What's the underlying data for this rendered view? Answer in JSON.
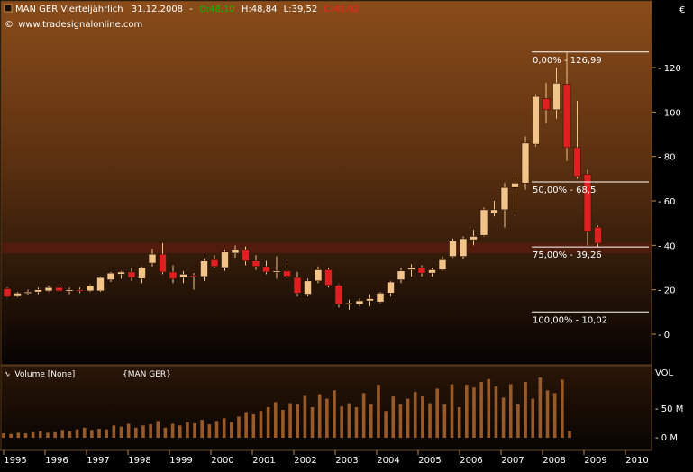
{
  "header": {
    "symbol": "MAN GER Vierteljährlich",
    "date": "31.12.2008",
    "sep": "-",
    "open": "O:48,10",
    "high": "H:48,84",
    "low": "L:39,52",
    "close": "C:40,92",
    "source": "www.tradesignalonline.com",
    "currency": "€"
  },
  "volume_panel": {
    "label": "Volume [None]",
    "symbol_label": "{MAN GER}",
    "axis_labels": [
      "VOL",
      "50 M",
      "0 M"
    ]
  },
  "colors": {
    "background_top": "#8a4c1a",
    "background_bottom": "#050302",
    "up_candle": "#f3c48a",
    "down_candle": "#e02020",
    "volume_bar": "#9a5a28",
    "fib_line": "#ffffff",
    "highlight_band": "#5a1c0e",
    "open_green": "#00c000",
    "close_red": "#ff2020"
  },
  "chart_data": [
    {
      "type": "candlestick",
      "title": "MAN GER Vierteljährlich",
      "ylabel": "€",
      "ylim": [
        -10,
        140
      ],
      "y_ticks": [
        0,
        20,
        40,
        60,
        80,
        100,
        120
      ],
      "x_ticks": [
        "1995",
        "1996",
        "1997",
        "1998",
        "1999",
        "2000",
        "2001",
        "2002",
        "2003",
        "2004",
        "2005",
        "2006",
        "2007",
        "2008",
        "2009",
        "2010"
      ],
      "candles": [
        {
          "q": "1995-Q1",
          "o": 20.5,
          "h": 21.0,
          "l": 16.5,
          "c": 16.9
        },
        {
          "q": "1995-Q2",
          "o": 17.0,
          "h": 19.0,
          "l": 16.5,
          "c": 18.5
        },
        {
          "q": "1995-Q3",
          "o": 18.5,
          "h": 20.0,
          "l": 17.5,
          "c": 19.0
        },
        {
          "q": "1995-Q4",
          "o": 19.0,
          "h": 21.0,
          "l": 18.0,
          "c": 20.0
        },
        {
          "q": "1996-Q1",
          "o": 19.5,
          "h": 22.0,
          "l": 19.0,
          "c": 21.0
        },
        {
          "q": "1996-Q2",
          "o": 21.0,
          "h": 22.0,
          "l": 19.0,
          "c": 19.5
        },
        {
          "q": "1996-Q3",
          "o": 19.5,
          "h": 21.0,
          "l": 18.0,
          "c": 20.0
        },
        {
          "q": "1996-Q4",
          "o": 20.0,
          "h": 21.0,
          "l": 18.5,
          "c": 19.5
        },
        {
          "q": "1997-Q1",
          "o": 19.5,
          "h": 22.5,
          "l": 19.0,
          "c": 22.0
        },
        {
          "q": "1997-Q2",
          "o": 19.5,
          "h": 26.0,
          "l": 19.0,
          "c": 25.5
        },
        {
          "q": "1997-Q3",
          "o": 24.5,
          "h": 28.0,
          "l": 23.5,
          "c": 27.5
        },
        {
          "q": "1997-Q4",
          "o": 27.0,
          "h": 28.5,
          "l": 25.0,
          "c": 28.0
        },
        {
          "q": "1998-Q1",
          "o": 28.0,
          "h": 30.0,
          "l": 24.0,
          "c": 25.5
        },
        {
          "q": "1998-Q2",
          "o": 25.0,
          "h": 30.5,
          "l": 23.0,
          "c": 30.0
        },
        {
          "q": "1998-Q3",
          "o": 32.0,
          "h": 38.5,
          "l": 30.5,
          "c": 36.0
        },
        {
          "q": "1998-Q4",
          "o": 36.0,
          "h": 41.0,
          "l": 27.0,
          "c": 28.0
        },
        {
          "q": "1999-Q1",
          "o": 28.0,
          "h": 31.0,
          "l": 23.0,
          "c": 25.0
        },
        {
          "q": "1999-Q2",
          "o": 25.5,
          "h": 28.5,
          "l": 23.0,
          "c": 27.0
        },
        {
          "q": "1999-Q3",
          "o": 26.5,
          "h": 27.5,
          "l": 20.0,
          "c": 26.0
        },
        {
          "q": "1999-Q4",
          "o": 26.0,
          "h": 34.0,
          "l": 24.0,
          "c": 33.0
        },
        {
          "q": "2000-Q1",
          "o": 33.5,
          "h": 35.5,
          "l": 30.0,
          "c": 30.5
        },
        {
          "q": "2000-Q2",
          "o": 30.0,
          "h": 38.0,
          "l": 28.5,
          "c": 37.0
        },
        {
          "q": "2000-Q3",
          "o": 36.5,
          "h": 40.0,
          "l": 34.5,
          "c": 38.0
        },
        {
          "q": "2000-Q4",
          "o": 38.0,
          "h": 39.5,
          "l": 31.0,
          "c": 33.0
        },
        {
          "q": "2001-Q1",
          "o": 33.0,
          "h": 35.5,
          "l": 29.0,
          "c": 30.5
        },
        {
          "q": "2001-Q2",
          "o": 30.5,
          "h": 33.0,
          "l": 27.0,
          "c": 28.0
        },
        {
          "q": "2001-Q3",
          "o": 28.0,
          "h": 35.0,
          "l": 25.0,
          "c": 28.5
        },
        {
          "q": "2001-Q4",
          "o": 28.5,
          "h": 32.0,
          "l": 25.0,
          "c": 26.0
        },
        {
          "q": "2002-Q1",
          "o": 25.5,
          "h": 28.0,
          "l": 17.0,
          "c": 18.5
        },
        {
          "q": "2002-Q2",
          "o": 18.0,
          "h": 25.0,
          "l": 17.0,
          "c": 24.0
        },
        {
          "q": "2002-Q3",
          "o": 24.0,
          "h": 30.5,
          "l": 23.0,
          "c": 29.0
        },
        {
          "q": "2002-Q4",
          "o": 29.0,
          "h": 30.0,
          "l": 21.0,
          "c": 22.0
        },
        {
          "q": "2003-Q1",
          "o": 22.0,
          "h": 22.5,
          "l": 12.0,
          "c": 13.5
        },
        {
          "q": "2003-Q2",
          "o": 13.5,
          "h": 15.5,
          "l": 11.0,
          "c": 14.0
        },
        {
          "q": "2003-Q3",
          "o": 13.5,
          "h": 16.0,
          "l": 12.5,
          "c": 15.0
        },
        {
          "q": "2003-Q4",
          "o": 15.0,
          "h": 18.0,
          "l": 12.5,
          "c": 16.0
        },
        {
          "q": "2004-Q1",
          "o": 14.5,
          "h": 19.0,
          "l": 14.0,
          "c": 18.5
        },
        {
          "q": "2004-Q2",
          "o": 18.5,
          "h": 24.0,
          "l": 17.0,
          "c": 23.5
        },
        {
          "q": "2004-Q3",
          "o": 24.5,
          "h": 30.0,
          "l": 23.0,
          "c": 28.5
        },
        {
          "q": "2004-Q4",
          "o": 29.0,
          "h": 31.5,
          "l": 26.0,
          "c": 30.0
        },
        {
          "q": "2005-Q1",
          "o": 30.0,
          "h": 31.0,
          "l": 26.0,
          "c": 27.5
        },
        {
          "q": "2005-Q2",
          "o": 27.5,
          "h": 30.0,
          "l": 26.0,
          "c": 29.0
        },
        {
          "q": "2005-Q3",
          "o": 29.0,
          "h": 35.0,
          "l": 28.5,
          "c": 33.5
        },
        {
          "q": "2005-Q4",
          "o": 35.0,
          "h": 43.0,
          "l": 34.5,
          "c": 42.0
        },
        {
          "q": "2006-Q1",
          "o": 35.0,
          "h": 44.0,
          "l": 34.0,
          "c": 43.0
        },
        {
          "q": "2006-Q2",
          "o": 42.5,
          "h": 47.0,
          "l": 40.0,
          "c": 44.0
        },
        {
          "q": "2006-Q3",
          "o": 44.5,
          "h": 57.0,
          "l": 44.0,
          "c": 56.0
        },
        {
          "q": "2006-Q4",
          "o": 54.5,
          "h": 60.0,
          "l": 53.0,
          "c": 56.0
        },
        {
          "q": "2007-Q1",
          "o": 56.0,
          "h": 68.0,
          "l": 48.0,
          "c": 66.0
        },
        {
          "q": "2007-Q2",
          "o": 66.0,
          "h": 71.5,
          "l": 55.0,
          "c": 68.0
        },
        {
          "q": "2007-Q3",
          "o": 68.0,
          "h": 89.0,
          "l": 65.0,
          "c": 86.0
        },
        {
          "q": "2007-Q4",
          "o": 85.5,
          "h": 108.0,
          "l": 84.5,
          "c": 107.0
        },
        {
          "q": "2008-Q1",
          "o": 106.0,
          "h": 113.0,
          "l": 95.0,
          "c": 101.0
        },
        {
          "q": "2008-Q2",
          "o": 101.0,
          "h": 120.0,
          "l": 97.0,
          "c": 113.0
        },
        {
          "q": "2008-Q3",
          "o": 112.5,
          "h": 127.0,
          "l": 78.0,
          "c": 84.0
        },
        {
          "q": "2008-Q4",
          "o": 84.0,
          "h": 105.0,
          "l": 70.0,
          "c": 71.0
        },
        {
          "q": "2009-Q1",
          "o": 72.0,
          "h": 74.0,
          "l": 40.0,
          "c": 46.0
        },
        {
          "q": "2009-Q2",
          "o": 48.1,
          "h": 48.84,
          "l": 39.52,
          "c": 40.92
        }
      ],
      "fibonacci_levels": [
        {
          "label": "0,00% - 126,99",
          "value": 126.99
        },
        {
          "label": "50,00% - 68,5",
          "value": 68.5
        },
        {
          "label": "75,00% - 39,26",
          "value": 39.26
        },
        {
          "label": "100,00% - 10,02",
          "value": 10.02
        }
      ],
      "highlight_band": {
        "from": 36.5,
        "to": 41.0
      },
      "grid": false
    },
    {
      "type": "bar",
      "title": "Volume [None]",
      "ylabel": "VOL",
      "ylim": [
        0,
        120
      ],
      "y_ticks": [
        0,
        50
      ],
      "unit": "M",
      "values": [
        8,
        7,
        9,
        8,
        10,
        12,
        9,
        10,
        14,
        12,
        15,
        18,
        14,
        16,
        15,
        22,
        20,
        25,
        18,
        22,
        24,
        30,
        18,
        25,
        22,
        28,
        26,
        32,
        24,
        30,
        35,
        28,
        38,
        46,
        42,
        48,
        55,
        64,
        50,
        62,
        60,
        75,
        55,
        78,
        70,
        85,
        56,
        62,
        55,
        80,
        60,
        95,
        48,
        74,
        60,
        70,
        82,
        74,
        62,
        88,
        60,
        96,
        55,
        95,
        90,
        100,
        105,
        92,
        72,
        96,
        60,
        100,
        70,
        108,
        85,
        80,
        104,
        12
      ]
    }
  ]
}
